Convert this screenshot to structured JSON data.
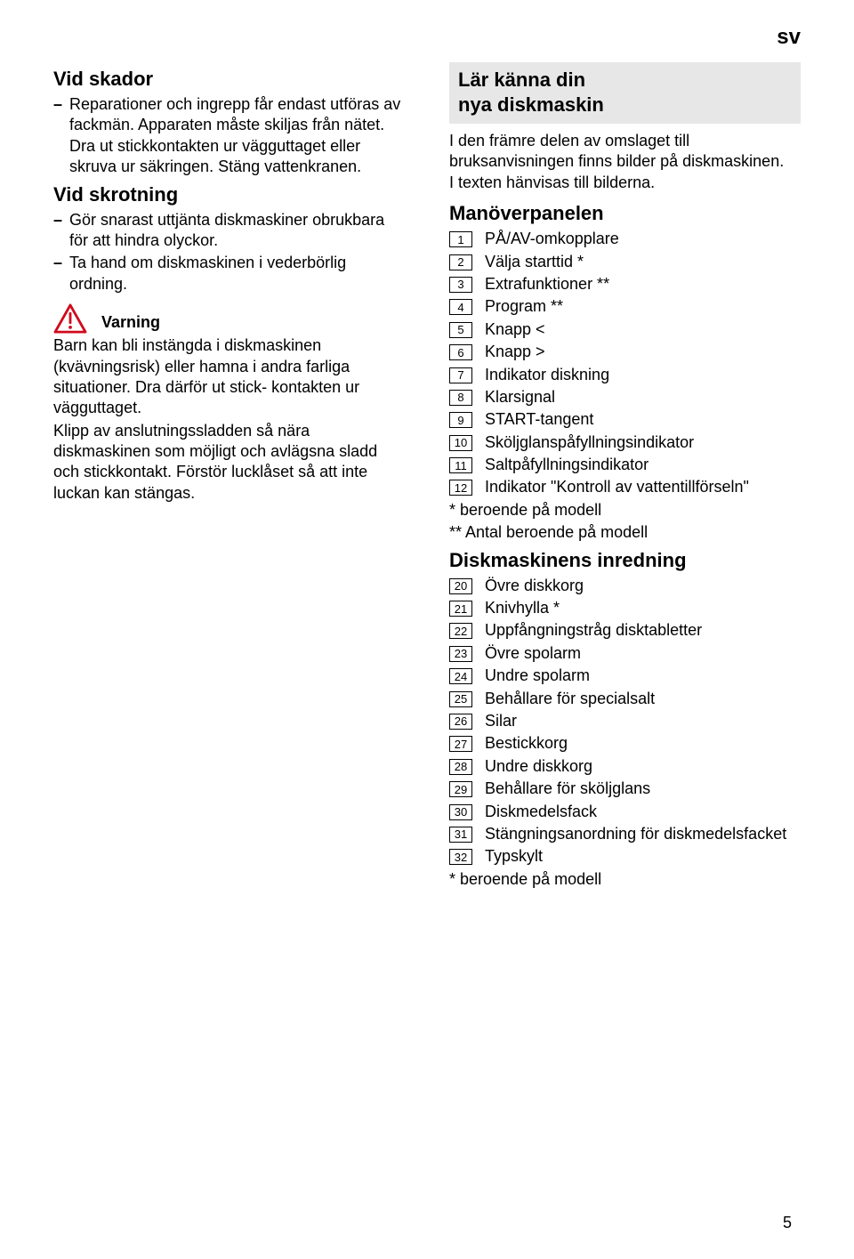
{
  "lang_code": "sv",
  "page_number": "5",
  "left": {
    "section1_title": "Vid skador",
    "section1_bullets": [
      "Reparationer och ingrepp får endast utföras av fackmän. Apparaten måste skiljas från nätet. Dra ut stickkontakten ur vägguttaget eller skruva ur säkringen. Stäng vattenkranen."
    ],
    "section2_title": "Vid skrotning",
    "section2_bullets": [
      "Gör snarast uttjänta diskmaskiner obrukbara för att hindra olyckor.",
      "Ta hand om diskmaskinen i vederbörlig ordning."
    ],
    "warning_label": "Varning",
    "warning_text": "Barn kan bli instängda i diskmaskinen (kvävningsrisk) eller hamna i andra farliga situationer. Dra därför ut stick- kontakten ur vägguttaget.",
    "warning_text2": "Klipp av anslutningssladden så nära diskmaskinen som möjligt och avlägsna sladd och stickkontakt. Förstör lucklåset så att inte luckan kan stängas."
  },
  "right": {
    "box_line1": "Lär känna din",
    "box_line2": "nya diskmaskin",
    "intro": "I den främre delen av omslaget till bruksanvisningen finns bilder på diskmaskinen.\nI texten hänvisas till bilderna.",
    "panel_title": "Manöverpanelen",
    "panel_items": [
      {
        "n": "1",
        "label": "PÅ/AV-omkopplare"
      },
      {
        "n": "2",
        "label": "Välja starttid *"
      },
      {
        "n": "3",
        "label": "Extrafunktioner **"
      },
      {
        "n": "4",
        "label": "Program **"
      },
      {
        "n": "5",
        "label": "Knapp <"
      },
      {
        "n": "6",
        "label": "Knapp >"
      },
      {
        "n": "7",
        "label": "Indikator diskning"
      },
      {
        "n": "8",
        "label": "Klarsignal"
      },
      {
        "n": "9",
        "label": "START-tangent"
      },
      {
        "n": "10",
        "label": "Sköljglanspåfyllningsindikator"
      },
      {
        "n": "11",
        "label": "Saltpåfyllningsindikator"
      },
      {
        "n": "12",
        "label": "Indikator \"Kontroll av vattentillförseln\""
      }
    ],
    "panel_footnote1": "* beroende på modell",
    "panel_footnote2": "** Antal beroende på modell",
    "interior_title": "Diskmaskinens inredning",
    "interior_items": [
      {
        "n": "20",
        "label": "Övre diskkorg"
      },
      {
        "n": "21",
        "label": "Knivhylla *"
      },
      {
        "n": "22",
        "label": "Uppfångningstråg disktabletter"
      },
      {
        "n": "23",
        "label": "Övre spolarm"
      },
      {
        "n": "24",
        "label": "Undre spolarm"
      },
      {
        "n": "25",
        "label": "Behållare för specialsalt"
      },
      {
        "n": "26",
        "label": "Silar"
      },
      {
        "n": "27",
        "label": "Bestickkorg"
      },
      {
        "n": "28",
        "label": "Undre diskkorg"
      },
      {
        "n": "29",
        "label": "Behållare för sköljglans"
      },
      {
        "n": "30",
        "label": "Diskmedelsfack"
      },
      {
        "n": "31",
        "label": "Stängningsanordning för diskmedelsfacket"
      },
      {
        "n": "32",
        "label": "Typskylt"
      }
    ],
    "interior_footnote": "* beroende på modell"
  },
  "colors": {
    "text": "#000000",
    "background": "#ffffff",
    "box_bg": "#e7e7e7",
    "warning_stroke": "#d1091c"
  }
}
